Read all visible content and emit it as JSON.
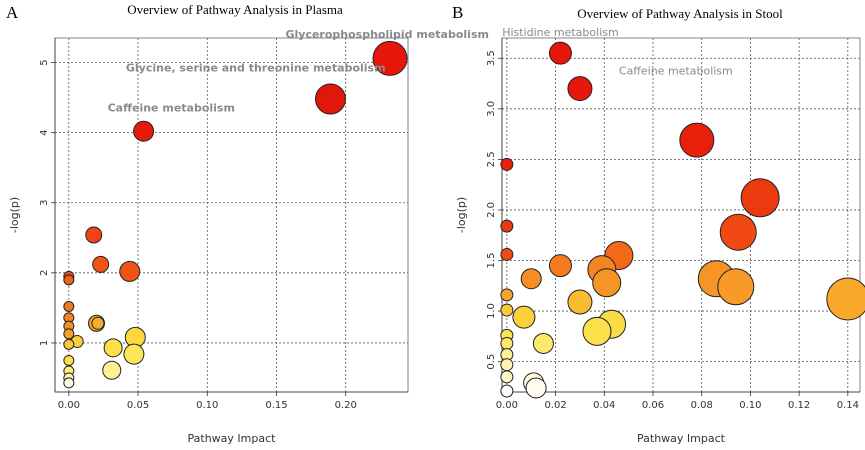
{
  "chart_data": [
    {
      "type": "scatter",
      "panel": "A",
      "title": "Overview of Pathway Analysis in Plasma",
      "xlabel": "Pathway Impact",
      "ylabel": "-log(p)",
      "xlim": [
        -0.01,
        0.245
      ],
      "ylim": [
        0.3,
        5.35
      ],
      "xticks": [
        0.0,
        0.05,
        0.1,
        0.15,
        0.2
      ],
      "xtick_labels": [
        "0.00",
        "0.05",
        "0.10",
        "0.15",
        "0.20"
      ],
      "yticks": [
        1,
        2,
        3,
        4,
        5
      ],
      "grid": true,
      "annotations": [
        {
          "text": "Glycerophospholipid metabolism",
          "x": 0.23,
          "y": 5.35
        },
        {
          "text": "Glycine, serine and threonine metabolism",
          "x": 0.135,
          "y": 4.87
        },
        {
          "text": "Caffeine metabolism",
          "x": 0.03,
          "y": 4.3
        }
      ],
      "points": [
        {
          "x": 0.232,
          "y": 5.06,
          "size": 17,
          "color": "#e8150a"
        },
        {
          "x": 0.189,
          "y": 4.48,
          "size": 15,
          "color": "#e2170b"
        },
        {
          "x": 0.054,
          "y": 4.02,
          "size": 10,
          "color": "#e61a0b"
        },
        {
          "x": 0.018,
          "y": 2.54,
          "size": 8,
          "color": "#ec4412"
        },
        {
          "x": 0.023,
          "y": 2.12,
          "size": 8,
          "color": "#ef5515"
        },
        {
          "x": 0.044,
          "y": 2.02,
          "size": 10,
          "color": "#ef5515"
        },
        {
          "x": 0.0,
          "y": 1.95,
          "size": 5,
          "color": "#ef5515"
        },
        {
          "x": 0.0,
          "y": 1.9,
          "size": 5,
          "color": "#ef6018"
        },
        {
          "x": 0.0,
          "y": 1.52,
          "size": 5,
          "color": "#f27a1e"
        },
        {
          "x": 0.0,
          "y": 1.36,
          "size": 5,
          "color": "#f58523"
        },
        {
          "x": 0.0,
          "y": 1.24,
          "size": 5,
          "color": "#f69026"
        },
        {
          "x": 0.0,
          "y": 1.13,
          "size": 5,
          "color": "#f8a12a"
        },
        {
          "x": 0.0,
          "y": 0.98,
          "size": 5,
          "color": "#fac935"
        },
        {
          "x": 0.0,
          "y": 0.75,
          "size": 5,
          "color": "#fbe045"
        },
        {
          "x": 0.0,
          "y": 0.6,
          "size": 5,
          "color": "#fdf07a"
        },
        {
          "x": 0.0,
          "y": 0.5,
          "size": 5,
          "color": "#fef5b0"
        },
        {
          "x": 0.0,
          "y": 0.43,
          "size": 5,
          "color": "#fffbe0"
        },
        {
          "x": 0.02,
          "y": 1.28,
          "size": 8,
          "color": "#f6a030"
        },
        {
          "x": 0.021,
          "y": 1.28,
          "size": 6,
          "color": "#f8ac30"
        },
        {
          "x": 0.006,
          "y": 1.02,
          "size": 6,
          "color": "#fbd040"
        },
        {
          "x": 0.048,
          "y": 1.08,
          "size": 10,
          "color": "#fbd840"
        },
        {
          "x": 0.032,
          "y": 0.93,
          "size": 9,
          "color": "#fce04a"
        },
        {
          "x": 0.047,
          "y": 0.84,
          "size": 10,
          "color": "#fce556"
        },
        {
          "x": 0.031,
          "y": 0.61,
          "size": 9,
          "color": "#fdf095"
        }
      ]
    },
    {
      "type": "scatter",
      "panel": "B",
      "title": "Overview of Pathway Analysis in Stool",
      "xlabel": "Pathway Impact",
      "ylabel": "-log(p)",
      "xlim": [
        -0.002,
        0.145
      ],
      "ylim": [
        0.2,
        3.7
      ],
      "xticks": [
        0.0,
        0.02,
        0.04,
        0.06,
        0.08,
        0.1,
        0.12,
        0.14
      ],
      "xtick_labels": [
        "0.00",
        "0.02",
        "0.04",
        "0.06",
        "0.08",
        "0.10",
        "0.12",
        "0.14"
      ],
      "yticks": [
        0.5,
        1.0,
        1.5,
        2.0,
        2.5,
        3.0,
        3.5
      ],
      "ytick_labels": [
        "0.5",
        "1.0",
        "1.5",
        "2.0",
        "2.5",
        "3.0",
        "3.5"
      ],
      "grid": true,
      "annotations": [
        {
          "text": "Histidine metabolism",
          "x": 0.022,
          "y": 3.72
        },
        {
          "text": "Caffeine metabolism",
          "x": 0.046,
          "y": 3.34
        }
      ],
      "points": [
        {
          "x": 0.022,
          "y": 3.55,
          "size": 11,
          "color": "#e8150a"
        },
        {
          "x": 0.03,
          "y": 3.2,
          "size": 12,
          "color": "#e8150a"
        },
        {
          "x": 0.078,
          "y": 2.69,
          "size": 17,
          "color": "#e8200b"
        },
        {
          "x": 0.104,
          "y": 2.12,
          "size": 19,
          "color": "#ec3a10"
        },
        {
          "x": 0.095,
          "y": 1.78,
          "size": 18,
          "color": "#f04a12"
        },
        {
          "x": 0.0,
          "y": 2.45,
          "size": 6,
          "color": "#e8200b"
        },
        {
          "x": 0.0,
          "y": 1.84,
          "size": 6,
          "color": "#ec3a10"
        },
        {
          "x": 0.0,
          "y": 1.56,
          "size": 6,
          "color": "#ee4a12"
        },
        {
          "x": 0.046,
          "y": 1.55,
          "size": 14,
          "color": "#f26a18"
        },
        {
          "x": 0.022,
          "y": 1.45,
          "size": 11,
          "color": "#f47c1e"
        },
        {
          "x": 0.039,
          "y": 1.41,
          "size": 14,
          "color": "#f48322"
        },
        {
          "x": 0.01,
          "y": 1.32,
          "size": 10,
          "color": "#f58d24"
        },
        {
          "x": 0.041,
          "y": 1.28,
          "size": 14,
          "color": "#f69428"
        },
        {
          "x": 0.0,
          "y": 1.16,
          "size": 6,
          "color": "#f8a22b"
        },
        {
          "x": 0.086,
          "y": 1.32,
          "size": 18,
          "color": "#f69428"
        },
        {
          "x": 0.094,
          "y": 1.24,
          "size": 18,
          "color": "#f79a28"
        },
        {
          "x": 0.14,
          "y": 1.12,
          "size": 21,
          "color": "#f9a82a"
        },
        {
          "x": 0.03,
          "y": 1.09,
          "size": 12,
          "color": "#f9bc30"
        },
        {
          "x": 0.0,
          "y": 1.01,
          "size": 6,
          "color": "#fac935"
        },
        {
          "x": 0.007,
          "y": 0.94,
          "size": 11,
          "color": "#fbd03a"
        },
        {
          "x": 0.043,
          "y": 0.87,
          "size": 14,
          "color": "#fcdc44"
        },
        {
          "x": 0.037,
          "y": 0.8,
          "size": 14,
          "color": "#fce04a"
        },
        {
          "x": 0.0,
          "y": 0.76,
          "size": 6,
          "color": "#fce556"
        },
        {
          "x": 0.0,
          "y": 0.68,
          "size": 6,
          "color": "#fde870"
        },
        {
          "x": 0.015,
          "y": 0.68,
          "size": 10,
          "color": "#fdea6a"
        },
        {
          "x": 0.0,
          "y": 0.57,
          "size": 6,
          "color": "#fdf090"
        },
        {
          "x": 0.0,
          "y": 0.47,
          "size": 6,
          "color": "#fef4b0"
        },
        {
          "x": 0.0,
          "y": 0.35,
          "size": 6,
          "color": "#fff8c8"
        },
        {
          "x": 0.011,
          "y": 0.29,
          "size": 10,
          "color": "#fffbe0"
        },
        {
          "x": 0.012,
          "y": 0.24,
          "size": 10,
          "color": "#fffdf0"
        },
        {
          "x": 0.0,
          "y": 0.21,
          "size": 6,
          "color": "#ffffff"
        }
      ]
    }
  ]
}
